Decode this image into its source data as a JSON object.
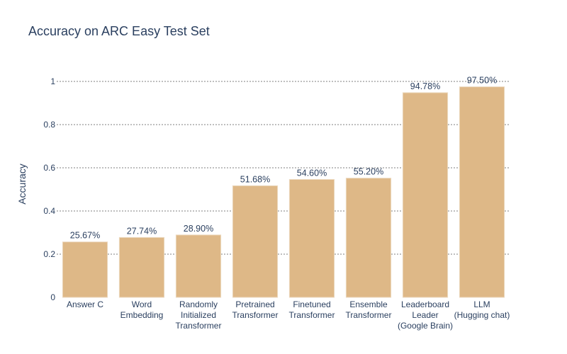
{
  "chart_data": {
    "type": "bar",
    "title": "Accuracy on ARC Easy Test Set",
    "xlabel": "",
    "ylabel": "Accuracy",
    "ylim": [
      0,
      1.05
    ],
    "yticks": [
      0,
      0.2,
      0.4,
      0.6,
      0.8,
      1
    ],
    "ytick_labels": [
      "0",
      "0.2",
      "0.4",
      "0.6",
      "0.8",
      "1"
    ],
    "grid": true,
    "bar_color": "#deb887",
    "categories": [
      [
        "Answer C"
      ],
      [
        "Word",
        "Embedding"
      ],
      [
        "Randomly",
        "Initialized",
        "Transformer"
      ],
      [
        "Pretrained",
        "Transformer"
      ],
      [
        "Finetuned",
        "Transformer"
      ],
      [
        "Ensemble",
        "Transformer"
      ],
      [
        "Leaderboard",
        "Leader",
        "(Google Brain)"
      ],
      [
        "LLM",
        "(Hugging chat)"
      ]
    ],
    "values": [
      0.2567,
      0.2774,
      0.289,
      0.5168,
      0.546,
      0.552,
      0.9478,
      0.975
    ],
    "data_labels": [
      "25.67%",
      "27.74%",
      "28.90%",
      "51.68%",
      "54.60%",
      "55.20%",
      "94.78%",
      "97.50%"
    ]
  }
}
